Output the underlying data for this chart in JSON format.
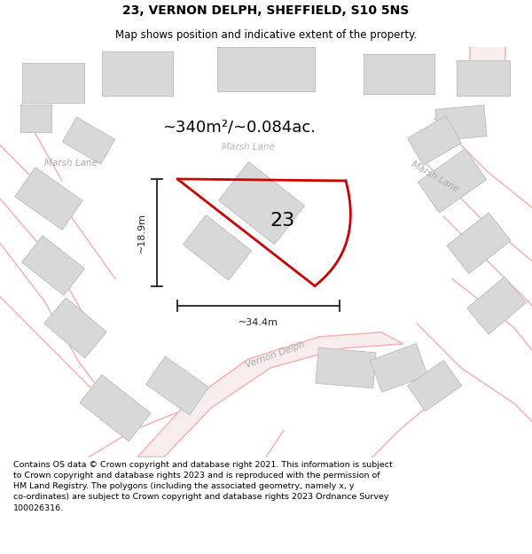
{
  "title": "23, VERNON DELPH, SHEFFIELD, S10 5NS",
  "subtitle": "Map shows position and indicative extent of the property.",
  "area_label": "~340m²/~0.084ac.",
  "width_label": "~34.4m",
  "height_label": "~18.9m",
  "property_number": "23",
  "footer_lines": [
    "Contains OS data © Crown copyright and database right 2021. This information is subject",
    "to Crown copyright and database rights 2023 and is reproduced with the permission of",
    "HM Land Registry. The polygons (including the associated geometry, namely x, y",
    "co-ordinates) are subject to Crown copyright and database rights 2023 Ordnance Survey",
    "100026316."
  ],
  "bg_color": "#ffffff",
  "map_bg": "#ffffff",
  "road_color": "#f5b8b8",
  "road_lw": 1.2,
  "property_outline_color": "#cc0000",
  "property_lw": 2.0,
  "building_fill": "#d8d8d8",
  "building_edge": "#c0c0c0",
  "street_label_color": "#aaaaaa",
  "dim_color": "#222222",
  "title_fontsize": 10,
  "subtitle_fontsize": 8.5,
  "area_fontsize": 13,
  "number_fontsize": 16,
  "footer_fontsize": 6.8,
  "map_xlim": [
    0,
    600
  ],
  "map_ylim": [
    0,
    460
  ]
}
